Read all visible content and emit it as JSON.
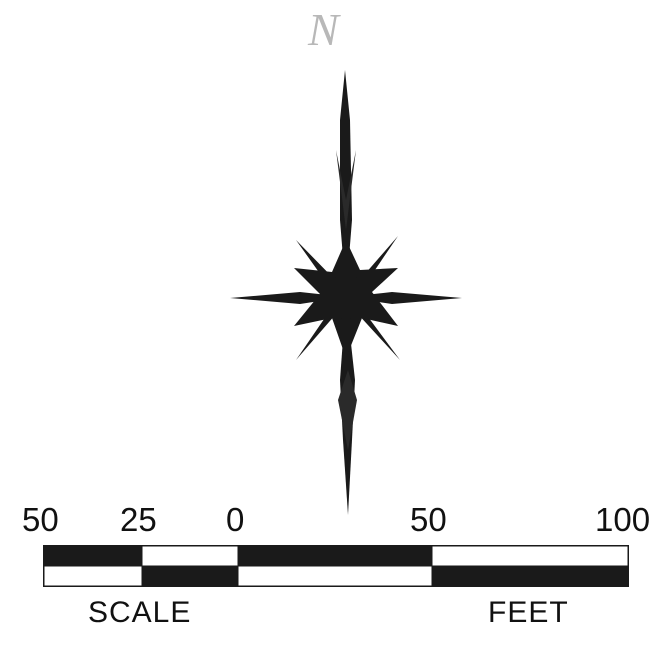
{
  "north_arrow": {
    "label": "N",
    "icon": "compass-rose-icon",
    "color": "#1a1a1a"
  },
  "scale_bar": {
    "tick_labels": [
      "50",
      "25",
      "0",
      "50",
      "100"
    ],
    "caption_left": "SCALE",
    "caption_right": "FEET",
    "fill_color": "#1a1a1a"
  }
}
